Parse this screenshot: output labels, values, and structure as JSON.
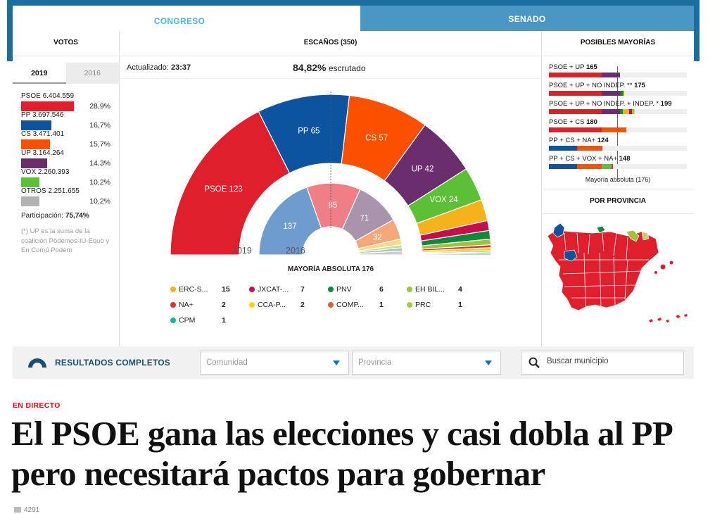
{
  "tabs": {
    "congreso": "CONGRESO",
    "senado": "SENADO"
  },
  "votos": {
    "title": "VOTOS",
    "years": [
      "2019",
      "2016"
    ],
    "rows": [
      {
        "label": "PSOE 6.404.559",
        "pct": "28,9%",
        "color": "#e01f2d",
        "share": 0.289
      },
      {
        "label": "PP 3.697.546",
        "pct": "16,7%",
        "color": "#0d54a0",
        "share": 0.167
      },
      {
        "label": "CS 3.471.401",
        "pct": "15,7%",
        "color": "#fa5000",
        "share": 0.157
      },
      {
        "label": "UP 3.164.264",
        "pct": "14,3%",
        "color": "#6a2d6e",
        "share": 0.143
      },
      {
        "label": "VOX 2.260.393",
        "pct": "10,2%",
        "color": "#5bc035",
        "share": 0.102
      },
      {
        "label": "OTROS 2.251.655",
        "pct": "10,2%",
        "color": "#b2b2b2",
        "share": 0.102
      }
    ],
    "participacion_label": "Participación:",
    "participacion_value": "75,74%",
    "note": "(*) UP es la suma de la coalición Podemos-IU-Equo y En Comú Podem"
  },
  "escanos": {
    "title": "ESCAÑOS (350)",
    "updated_label": "Actualizado:",
    "updated_time": "23:37",
    "escrutado_value": "84,82%",
    "escrutado_label": "escrutado",
    "year_2019": "2019",
    "year_2016": "2016",
    "mayoria": "MAYORÍA ABSOLUTA 176",
    "outer_2019": [
      {
        "party": "PSOE",
        "seats": 123,
        "color": "#e01f2d"
      },
      {
        "party": "PP",
        "seats": 65,
        "color": "#0d54a0"
      },
      {
        "party": "CS",
        "seats": 57,
        "color": "#fa5000"
      },
      {
        "party": "UP",
        "seats": 42,
        "color": "#6a2d6e"
      },
      {
        "party": "VOX",
        "seats": 24,
        "color": "#5bc035"
      },
      {
        "party": "ERC",
        "seats": 15,
        "color": "#f6b21a"
      },
      {
        "party": "JXCAT",
        "seats": 7,
        "color": "#c80d4f"
      },
      {
        "party": "PNV",
        "seats": 6,
        "color": "#0b8a3a"
      },
      {
        "party": "EHB",
        "seats": 4,
        "color": "#9bc33b"
      },
      {
        "party": "NA+",
        "seats": 2,
        "color": "#e8302a"
      },
      {
        "party": "CCA",
        "seats": 2,
        "color": "#ffd200"
      },
      {
        "party": "COMP",
        "seats": 1,
        "color": "#d9643a"
      },
      {
        "party": "PRC",
        "seats": 1,
        "color": "#a3cc47"
      },
      {
        "party": "CPM",
        "seats": 1,
        "color": "#13b79b"
      }
    ],
    "inner_2016": [
      {
        "seats": 137,
        "color": "#6e9ccf",
        "label": "137"
      },
      {
        "seats": 85,
        "color": "#ef7e87",
        "label": "85"
      },
      {
        "seats": 71,
        "color": "#a993ad",
        "label": "71"
      },
      {
        "seats": 32,
        "color": "#f5a777",
        "label": "32"
      },
      {
        "seats": 9,
        "color": "#fad984",
        "label": ""
      },
      {
        "seats": 5,
        "color": "#c8dba0",
        "label": ""
      },
      {
        "seats": 5,
        "color": "#9fc9a9",
        "label": ""
      },
      {
        "seats": 6,
        "color": "#d6c8ce",
        "label": ""
      }
    ],
    "others": [
      {
        "name": "ERC-S...",
        "value": "15",
        "color": "#f6b21a"
      },
      {
        "name": "JXCAT-...",
        "value": "7",
        "color": "#c80d4f"
      },
      {
        "name": "PNV",
        "value": "6",
        "color": "#0b8a3a"
      },
      {
        "name": "EH BIL...",
        "value": "4",
        "color": "#9bc33b"
      },
      {
        "name": "NA+",
        "value": "2",
        "color": "#e8302a"
      },
      {
        "name": "CCA-P...",
        "value": "2",
        "color": "#ffd200"
      },
      {
        "name": "COMP...",
        "value": "1",
        "color": "#d9643a"
      },
      {
        "name": "PRC",
        "value": "1",
        "color": "#a3cc47"
      },
      {
        "name": "CPM",
        "value": "1",
        "color": "#13b79b"
      }
    ]
  },
  "mayorias": {
    "title": "POSIBLES MAYORÍAS",
    "rows": [
      {
        "label": "PSOE + UP",
        "total": "165",
        "segs": [
          [
            "#e01f2d",
            123
          ],
          [
            "#6a2d6e",
            42
          ]
        ]
      },
      {
        "label": "PSOE + UP + NO INDEP. **",
        "total": "175",
        "segs": [
          [
            "#e01f2d",
            123
          ],
          [
            "#6a2d6e",
            42
          ],
          [
            "#0b8a3a",
            6
          ],
          [
            "#e8302a",
            2
          ],
          [
            "#ffd200",
            2
          ]
        ]
      },
      {
        "label": "PSOE + UP + NO INDEP. + INDEP. *",
        "total": "199",
        "segs": [
          [
            "#e01f2d",
            123
          ],
          [
            "#6a2d6e",
            42
          ],
          [
            "#0b8a3a",
            6
          ],
          [
            "#f6b21a",
            15
          ],
          [
            "#c80d4f",
            7
          ],
          [
            "#9bc33b",
            4
          ],
          [
            "#ffd200",
            2
          ]
        ]
      },
      {
        "label": "PSOE + CS",
        "total": "180",
        "segs": [
          [
            "#e01f2d",
            123
          ],
          [
            "#fa5000",
            57
          ]
        ]
      },
      {
        "label": "PP + CS + NA+",
        "total": "124",
        "segs": [
          [
            "#0d54a0",
            65
          ],
          [
            "#fa5000",
            57
          ],
          [
            "#e8302a",
            2
          ]
        ]
      },
      {
        "label": "PP + CS + VOX + NA+",
        "total": "148",
        "segs": [
          [
            "#0d54a0",
            65
          ],
          [
            "#fa5000",
            57
          ],
          [
            "#5bc035",
            24
          ],
          [
            "#e8302a",
            2
          ]
        ]
      }
    ],
    "caption": "Mayoría absoluta (176)",
    "provincia_title": "POR PROVINCIA"
  },
  "toolbar": {
    "resultados": "RESULTADOS COMPLETOS",
    "comunidad": "Comunidad",
    "provincia": "Provincia",
    "search_placeholder": "Buscar municipio"
  },
  "article": {
    "kicker": "EN DIRECTO",
    "headline": "El PSOE gana las elecciones y casi dobla al PP pero necesitará pactos para gobernar",
    "comments": "4291"
  }
}
